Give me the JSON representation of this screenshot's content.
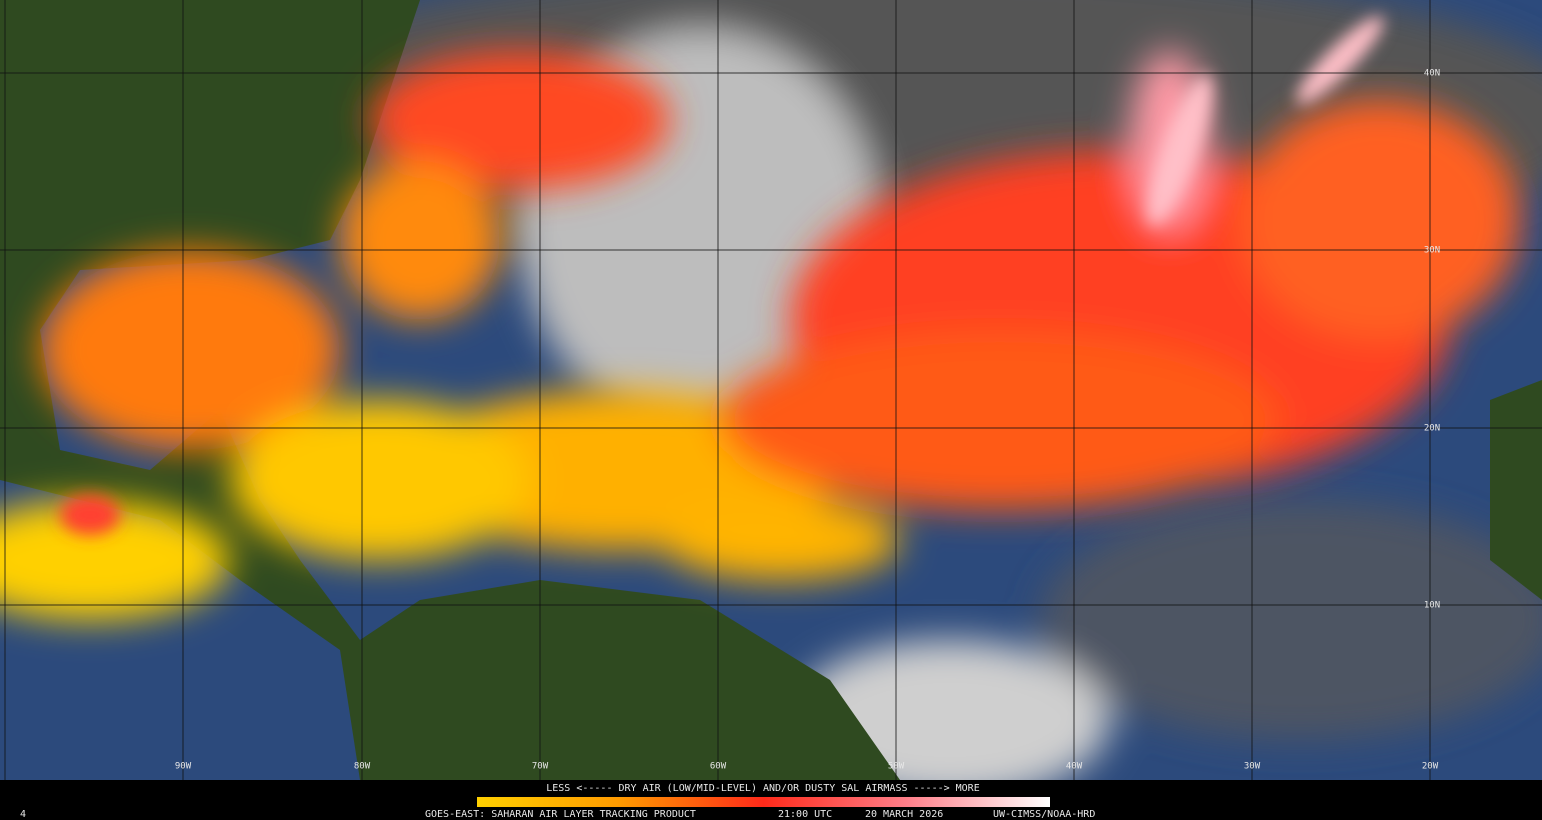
{
  "map": {
    "longitude_labels": [
      "90W",
      "80W",
      "70W",
      "60W",
      "50W",
      "40W",
      "30W",
      "20W"
    ],
    "latitude_labels": [
      "40N",
      "30N",
      "20N",
      "10N"
    ]
  },
  "legend": {
    "caption": "LESS <----- DRY AIR (LOW/MID-LEVEL) AND/OR DUSTY SAL AIRMASS -----> MORE"
  },
  "footer": {
    "frame": "4",
    "product": "GOES-EAST: SAHARAN AIR LAYER TRACKING PRODUCT",
    "time": "21:00 UTC",
    "date": "20 MARCH 2026",
    "credit": "UW-CIMSS/NOAA-HRD"
  }
}
